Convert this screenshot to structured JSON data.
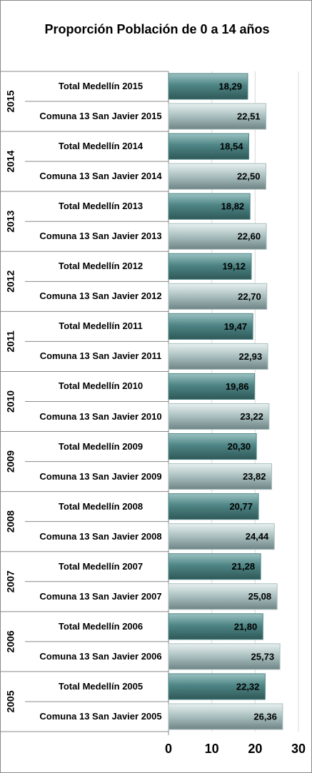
{
  "chart_data": {
    "type": "hbar",
    "title": "Proporción Población de 0 a 14 años",
    "groups": [
      "2015",
      "2014",
      "2013",
      "2012",
      "2011",
      "2010",
      "2009",
      "2008",
      "2007",
      "2006",
      "2005"
    ],
    "categories": [
      "Total Medellín 2015",
      "Comuna 13 San Javier 2015",
      "Total Medellín 2014",
      "Comuna 13 San Javier 2014",
      "Total Medellín 2013",
      "Comuna 13 San Javier 2013",
      "Total Medellín 2012",
      "Comuna 13 San Javier 2012",
      "Total Medellín 2011",
      "Comuna 13 San Javier 2011",
      "Total Medellín 2010",
      "Comuna 13 San Javier 2010",
      "Total Medellín 2009",
      "Comuna 13 San Javier 2009",
      "Total Medellín 2008",
      "Comuna 13 San Javier 2008",
      "Total Medellín 2007",
      "Comuna 13 San Javier 2007",
      "Total Medellín 2006",
      "Comuna 13 San Javier 2006",
      "Total Medellín 2005",
      "Comuna 13 San Javier 2005"
    ],
    "values": [
      18.29,
      22.51,
      18.54,
      22.5,
      18.82,
      22.6,
      19.12,
      22.7,
      19.47,
      22.93,
      19.86,
      23.22,
      20.3,
      23.82,
      20.77,
      24.44,
      21.28,
      25.08,
      21.8,
      25.73,
      22.32,
      26.36
    ],
    "value_labels": [
      "18,29",
      "22,51",
      "18,54",
      "22,50",
      "18,82",
      "22,60",
      "19,12",
      "22,70",
      "19,47",
      "22,93",
      "19,86",
      "23,22",
      "20,30",
      "23,82",
      "20,77",
      "24,44",
      "21,28",
      "25,08",
      "21,80",
      "25,73",
      "22,32",
      "26,36"
    ],
    "colors": [
      "#4f8585",
      "#a9bebe"
    ],
    "xlim": [
      0,
      30
    ],
    "xticks": [
      0,
      10,
      20,
      30
    ],
    "grid": true
  }
}
